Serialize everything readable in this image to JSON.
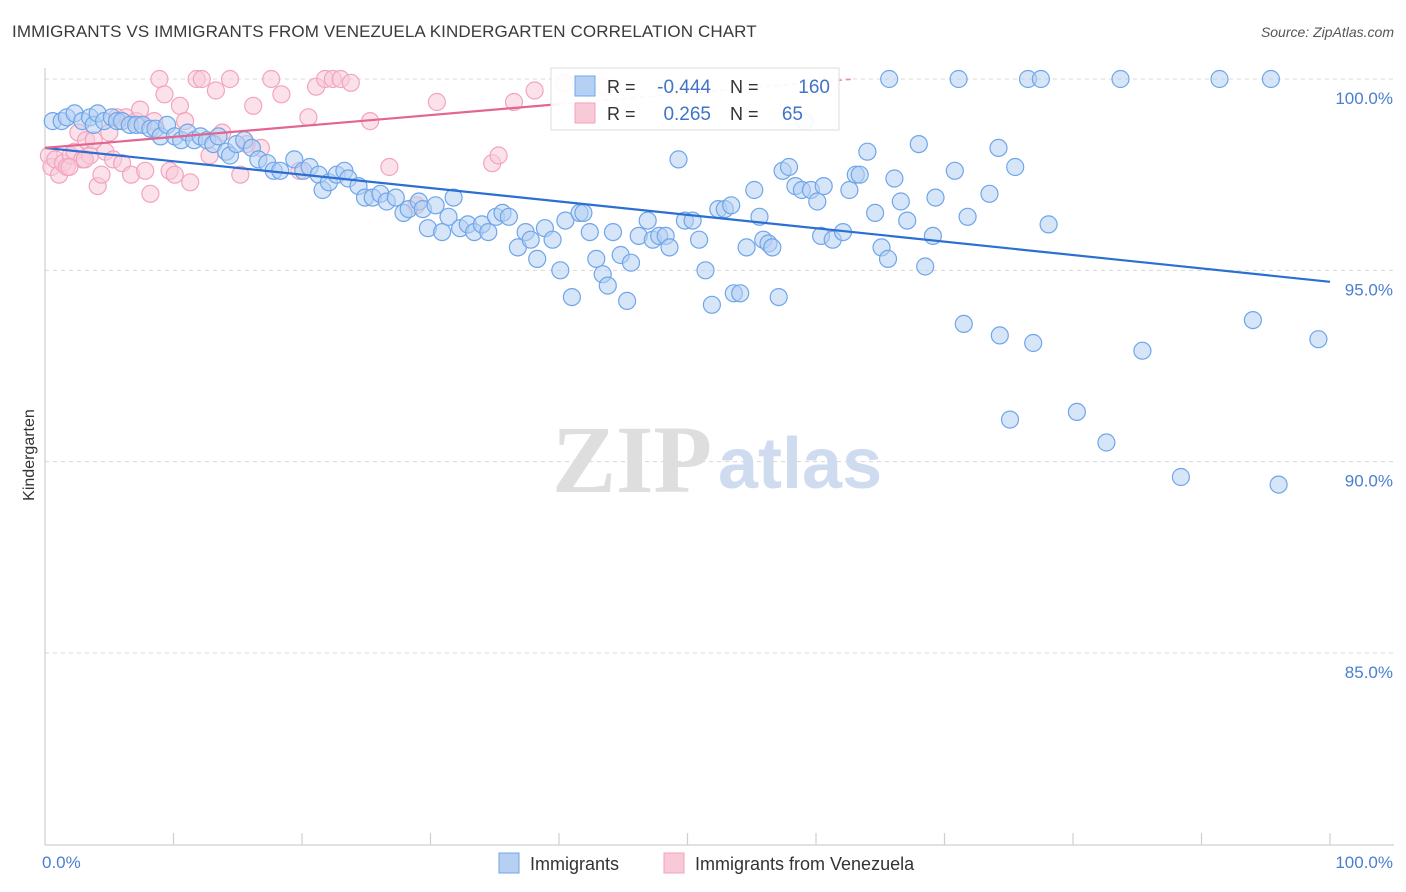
{
  "title": "IMMIGRANTS VS IMMIGRANTS FROM VENEZUELA KINDERGARTEN CORRELATION CHART",
  "source": "Source: ZipAtlas.com",
  "watermark": {
    "zip": "ZIP",
    "atlas": "atlas"
  },
  "colors": {
    "blue": "#6fa6ea",
    "blue_fill": "#b5d0f3",
    "blue_line": "#2a6fd1",
    "pink": "#f3a3bd",
    "pink_fill": "#f8cad8",
    "pink_line": "#e2668f",
    "tick_blue": "#4a7fd0",
    "grid": "#d8d8d8"
  },
  "legend_box": {
    "row1": {
      "r_label": "R =",
      "r_value": "-0.444",
      "n_label": "N =",
      "n_value": "160"
    },
    "row2": {
      "r_label": "R =",
      "r_value": "0.265",
      "n_label": "N =",
      "n_value": "65"
    }
  },
  "chart_data": {
    "type": "scatter",
    "title": "IMMIGRANTS VS IMMIGRANTS FROM VENEZUELA KINDERGARTEN CORRELATION CHART",
    "xlabel": "",
    "ylabel": "Kindergarten",
    "xlim": [
      0,
      100
    ],
    "ylim": [
      80.5,
      100.6
    ],
    "x_tick_labels": [
      "0.0%",
      "100.0%"
    ],
    "y_ticks": [
      {
        "value": 100,
        "label": "100.0%"
      },
      {
        "value": 95,
        "label": "95.0%"
      },
      {
        "value": 90,
        "label": "90.0%"
      },
      {
        "value": 85,
        "label": "85.0%"
      }
    ],
    "legend": [
      "Immigrants",
      "Immigrants from Venezuela"
    ],
    "series": [
      {
        "name": "Immigrants",
        "r": -0.444,
        "n": 160,
        "trend": {
          "x": [
            0,
            100
          ],
          "y": [
            98.2,
            94.7
          ]
        },
        "points": [
          [
            0.6,
            98.9
          ],
          [
            1.3,
            98.9
          ],
          [
            1.7,
            99.0
          ],
          [
            2.3,
            99.1
          ],
          [
            2.9,
            98.9
          ],
          [
            3.5,
            99.0
          ],
          [
            3.8,
            98.8
          ],
          [
            4.1,
            99.1
          ],
          [
            4.6,
            98.9
          ],
          [
            5.2,
            99.0
          ],
          [
            5.6,
            98.9
          ],
          [
            6.0,
            98.9
          ],
          [
            6.6,
            98.8
          ],
          [
            7.1,
            98.8
          ],
          [
            7.6,
            98.8
          ],
          [
            8.2,
            98.7
          ],
          [
            8.6,
            98.7
          ],
          [
            9.0,
            98.5
          ],
          [
            9.5,
            98.8
          ],
          [
            10.1,
            98.5
          ],
          [
            10.6,
            98.4
          ],
          [
            11.1,
            98.6
          ],
          [
            11.6,
            98.4
          ],
          [
            12.1,
            98.5
          ],
          [
            12.6,
            98.4
          ],
          [
            13.1,
            98.3
          ],
          [
            13.5,
            98.5
          ],
          [
            14.1,
            98.1
          ],
          [
            14.4,
            98.0
          ],
          [
            14.9,
            98.3
          ],
          [
            15.5,
            98.4
          ],
          [
            16.1,
            98.2
          ],
          [
            16.6,
            97.9
          ],
          [
            17.3,
            97.8
          ],
          [
            17.8,
            97.6
          ],
          [
            18.3,
            97.6
          ],
          [
            19.4,
            97.9
          ],
          [
            20.1,
            97.6
          ],
          [
            20.6,
            97.7
          ],
          [
            21.3,
            97.5
          ],
          [
            21.6,
            97.1
          ],
          [
            22.1,
            97.3
          ],
          [
            22.7,
            97.5
          ],
          [
            23.3,
            97.6
          ],
          [
            23.6,
            97.4
          ],
          [
            24.4,
            97.2
          ],
          [
            24.9,
            96.9
          ],
          [
            25.5,
            96.9
          ],
          [
            26.1,
            97.0
          ],
          [
            26.6,
            96.8
          ],
          [
            27.3,
            96.9
          ],
          [
            27.9,
            96.5
          ],
          [
            28.3,
            96.6
          ],
          [
            29.1,
            96.8
          ],
          [
            29.4,
            96.6
          ],
          [
            29.8,
            96.1
          ],
          [
            30.4,
            96.7
          ],
          [
            30.9,
            96.0
          ],
          [
            31.4,
            96.4
          ],
          [
            31.8,
            96.9
          ],
          [
            32.3,
            96.1
          ],
          [
            32.9,
            96.2
          ],
          [
            33.4,
            96.0
          ],
          [
            34.0,
            96.2
          ],
          [
            34.5,
            96.0
          ],
          [
            35.1,
            96.4
          ],
          [
            35.6,
            96.5
          ],
          [
            36.1,
            96.4
          ],
          [
            36.8,
            95.6
          ],
          [
            37.4,
            96.0
          ],
          [
            37.8,
            95.8
          ],
          [
            38.3,
            95.3
          ],
          [
            38.9,
            96.1
          ],
          [
            39.5,
            95.8
          ],
          [
            40.1,
            95.0
          ],
          [
            40.5,
            96.3
          ],
          [
            41.0,
            94.3
          ],
          [
            41.6,
            96.5
          ],
          [
            41.9,
            96.5
          ],
          [
            42.4,
            96.0
          ],
          [
            42.9,
            95.3
          ],
          [
            43.4,
            94.9
          ],
          [
            43.8,
            94.6
          ],
          [
            44.2,
            96.0
          ],
          [
            44.8,
            95.4
          ],
          [
            45.3,
            94.2
          ],
          [
            45.6,
            95.2
          ],
          [
            46.2,
            95.9
          ],
          [
            46.9,
            96.3
          ],
          [
            47.3,
            95.8
          ],
          [
            47.8,
            95.9
          ],
          [
            48.3,
            95.9
          ],
          [
            48.6,
            95.6
          ],
          [
            49.3,
            97.9
          ],
          [
            49.8,
            96.3
          ],
          [
            50.4,
            96.3
          ],
          [
            50.9,
            95.8
          ],
          [
            51.4,
            95.0
          ],
          [
            51.9,
            94.1
          ],
          [
            52.4,
            96.6
          ],
          [
            52.9,
            96.6
          ],
          [
            53.4,
            96.7
          ],
          [
            53.6,
            94.4
          ],
          [
            54.1,
            94.4
          ],
          [
            54.6,
            95.6
          ],
          [
            55.2,
            97.1
          ],
          [
            55.6,
            96.4
          ],
          [
            55.9,
            95.8
          ],
          [
            56.3,
            95.7
          ],
          [
            56.6,
            95.6
          ],
          [
            57.1,
            94.3
          ],
          [
            57.4,
            97.6
          ],
          [
            57.9,
            97.7
          ],
          [
            58.4,
            97.2
          ],
          [
            58.9,
            97.1
          ],
          [
            59.1,
            98.9
          ],
          [
            59.6,
            97.1
          ],
          [
            60.1,
            96.8
          ],
          [
            60.4,
            95.9
          ],
          [
            60.6,
            97.2
          ],
          [
            61.3,
            95.8
          ],
          [
            62.1,
            96.0
          ],
          [
            62.6,
            97.1
          ],
          [
            63.1,
            97.5
          ],
          [
            63.4,
            97.5
          ],
          [
            64.0,
            98.1
          ],
          [
            64.6,
            96.5
          ],
          [
            65.1,
            95.6
          ],
          [
            65.6,
            95.3
          ],
          [
            66.1,
            97.4
          ],
          [
            66.6,
            96.8
          ],
          [
            67.1,
            96.3
          ],
          [
            68.0,
            98.3
          ],
          [
            69.1,
            95.9
          ],
          [
            71.5,
            93.6
          ],
          [
            74.3,
            93.3
          ],
          [
            75.1,
            91.1
          ],
          [
            76.9,
            93.1
          ],
          [
            80.3,
            91.3
          ],
          [
            82.6,
            90.5
          ],
          [
            85.4,
            92.9
          ],
          [
            88.4,
            89.6
          ],
          [
            94.0,
            93.7
          ],
          [
            96.0,
            89.4
          ],
          [
            99.1,
            93.2
          ],
          [
            65.7,
            100.0
          ],
          [
            71.1,
            100.0
          ],
          [
            76.5,
            100.0
          ],
          [
            77.5,
            100.0
          ],
          [
            83.7,
            100.0
          ],
          [
            91.4,
            100.0
          ],
          [
            95.4,
            100.0
          ],
          [
            75.5,
            97.7
          ],
          [
            74.2,
            98.2
          ],
          [
            68.5,
            95.1
          ],
          [
            71.8,
            96.4
          ],
          [
            69.3,
            96.9
          ],
          [
            70.8,
            97.6
          ],
          [
            73.5,
            97.0
          ],
          [
            78.1,
            96.2
          ]
        ]
      },
      {
        "name": "Immigrants from Venezuela",
        "r": 0.265,
        "n": 65,
        "trend": {
          "x": [
            0,
            63
          ],
          "y": [
            98.2,
            100.0
          ]
        },
        "points": [
          [
            0.3,
            98.0
          ],
          [
            0.5,
            97.7
          ],
          [
            0.8,
            97.9
          ],
          [
            1.1,
            97.5
          ],
          [
            1.4,
            97.8
          ],
          [
            1.7,
            97.7
          ],
          [
            2.0,
            98.0
          ],
          [
            2.3,
            98.1
          ],
          [
            2.6,
            98.6
          ],
          [
            2.9,
            97.9
          ],
          [
            3.2,
            98.4
          ],
          [
            3.5,
            98.0
          ],
          [
            3.8,
            98.4
          ],
          [
            4.1,
            97.2
          ],
          [
            4.4,
            97.5
          ],
          [
            4.7,
            98.1
          ],
          [
            5.0,
            98.6
          ],
          [
            5.3,
            97.9
          ],
          [
            5.6,
            99.0
          ],
          [
            6.0,
            97.8
          ],
          [
            6.3,
            99.0
          ],
          [
            6.7,
            97.5
          ],
          [
            7.1,
            98.9
          ],
          [
            7.4,
            99.2
          ],
          [
            7.8,
            97.6
          ],
          [
            8.2,
            97.0
          ],
          [
            8.5,
            98.9
          ],
          [
            8.9,
            100.0
          ],
          [
            9.3,
            99.6
          ],
          [
            9.7,
            97.6
          ],
          [
            10.1,
            97.5
          ],
          [
            10.5,
            99.3
          ],
          [
            10.9,
            98.9
          ],
          [
            11.3,
            97.3
          ],
          [
            11.8,
            100.0
          ],
          [
            12.2,
            100.0
          ],
          [
            12.8,
            98.0
          ],
          [
            13.3,
            99.7
          ],
          [
            13.8,
            98.6
          ],
          [
            14.4,
            100.0
          ],
          [
            15.2,
            97.5
          ],
          [
            15.7,
            98.3
          ],
          [
            16.2,
            99.3
          ],
          [
            16.8,
            98.2
          ],
          [
            17.6,
            100.0
          ],
          [
            18.4,
            99.6
          ],
          [
            19.8,
            97.6
          ],
          [
            20.5,
            99.0
          ],
          [
            21.1,
            99.8
          ],
          [
            21.8,
            100.0
          ],
          [
            22.4,
            100.0
          ],
          [
            23.0,
            100.0
          ],
          [
            23.8,
            99.9
          ],
          [
            25.3,
            98.9
          ],
          [
            26.8,
            97.7
          ],
          [
            28.9,
            96.7
          ],
          [
            30.5,
            99.4
          ],
          [
            34.8,
            97.8
          ],
          [
            35.3,
            98.0
          ],
          [
            36.5,
            99.4
          ],
          [
            38.1,
            99.7
          ],
          [
            40.4,
            99.9
          ],
          [
            43.6,
            99.8
          ],
          [
            1.9,
            97.7
          ],
          [
            3.1,
            97.9
          ]
        ]
      }
    ]
  }
}
